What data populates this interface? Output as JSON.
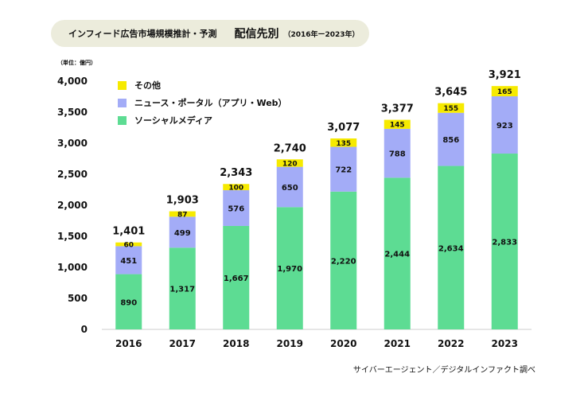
{
  "header": {
    "title_main": "インフィード広告市場規模推計・予測",
    "title_sub": "配信先別",
    "title_period": "（2016年ー2023年）"
  },
  "unit_label": "（単位：億円）",
  "source": "サイバーエージェント／デジタルインファクト調べ",
  "colors": {
    "social": "#5ddc93",
    "news": "#a3acf7",
    "other": "#f6ea00"
  },
  "legend": [
    {
      "key": "other",
      "label": "その他"
    },
    {
      "key": "news",
      "label": "ニュース・ポータル（アプリ・Web）"
    },
    {
      "key": "social",
      "label": "ソーシャルメディア"
    }
  ],
  "chart_data": {
    "type": "bar",
    "stacked": true,
    "categories": [
      "2016",
      "2017",
      "2018",
      "2019",
      "2020",
      "2021",
      "2022",
      "2023"
    ],
    "series": [
      {
        "name": "ソーシャルメディア",
        "key": "social",
        "values": [
          890,
          1317,
          1667,
          1970,
          2220,
          2444,
          2634,
          2833
        ],
        "labels": [
          "890",
          "1,317",
          "1,667",
          "1,970",
          "2,220",
          "2,444",
          "2,634",
          "2,833"
        ]
      },
      {
        "name": "ニュース・ポータル（アプリ・Web）",
        "key": "news",
        "values": [
          451,
          499,
          576,
          650,
          722,
          788,
          856,
          923
        ],
        "labels": [
          "451",
          "499",
          "576",
          "650",
          "722",
          "788",
          "856",
          "923"
        ]
      },
      {
        "name": "その他",
        "key": "other",
        "values": [
          60,
          87,
          100,
          120,
          135,
          145,
          155,
          165
        ],
        "labels": [
          "60",
          "87",
          "100",
          "120",
          "135",
          "145",
          "155",
          "165"
        ]
      }
    ],
    "totals": [
      1401,
      1903,
      2343,
      2740,
      3077,
      3377,
      3645,
      3921
    ],
    "total_labels": [
      "1,401",
      "1,903",
      "2,343",
      "2,740",
      "3,077",
      "3,377",
      "3,645",
      "3,921"
    ],
    "ylim": [
      0,
      4000
    ],
    "yticks": [
      0,
      500,
      1000,
      1500,
      2000,
      2500,
      3000,
      3500,
      4000
    ],
    "ytick_labels": [
      "0",
      "500",
      "1,000",
      "1,500",
      "2,000",
      "2,500",
      "3,000",
      "3,500",
      "4,000"
    ],
    "grid": false,
    "legend_position": "top-left"
  }
}
